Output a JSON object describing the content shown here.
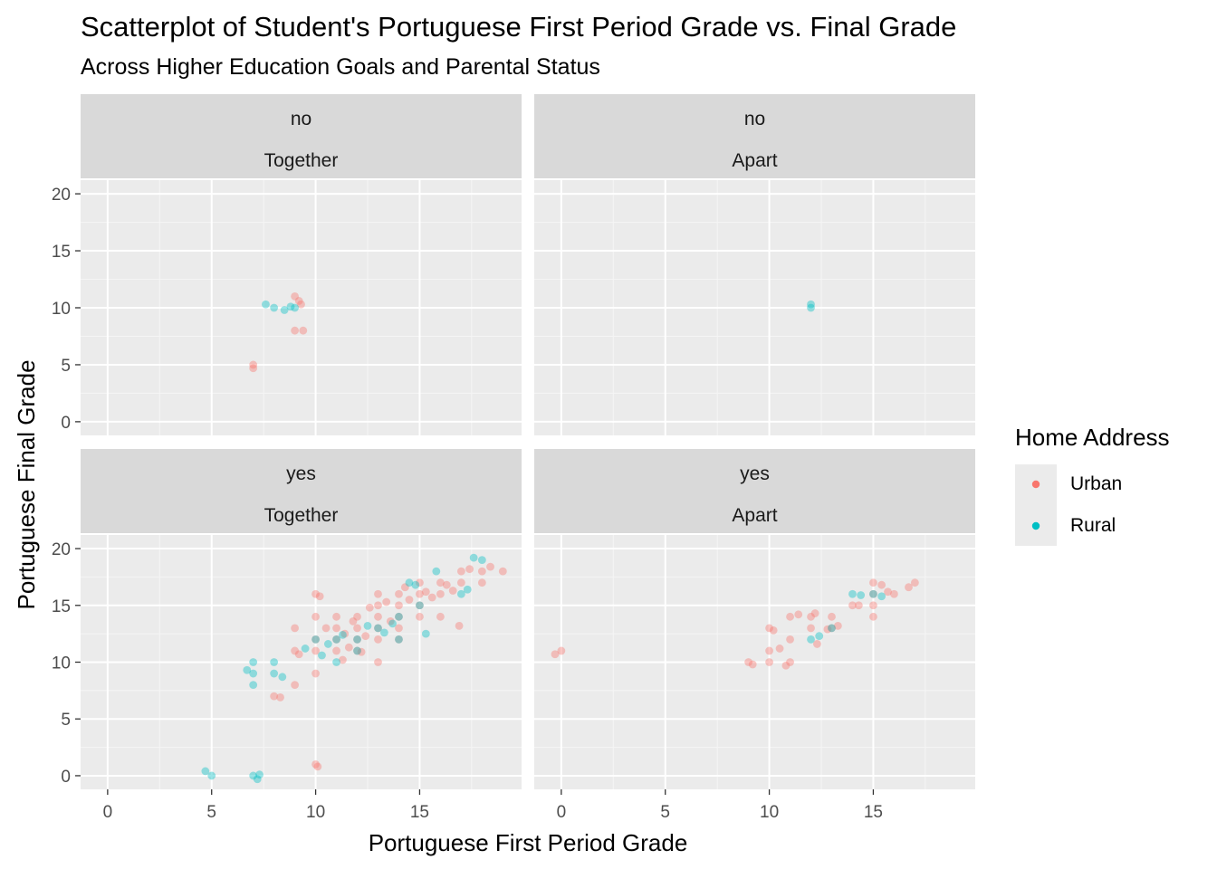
{
  "chart_data": {
    "type": "scatter",
    "title": "Scatterplot of Student's Portuguese First Period Grade vs. Final Grade",
    "subtitle": "Across Higher Education Goals and Parental Status",
    "xlabel": "Portuguese First Period Grade",
    "ylabel": "Portuguese Final Grade",
    "xlim": [
      -1.3,
      19.9
    ],
    "ylim": [
      -1.2,
      21.2
    ],
    "x_ticks": [
      "0",
      "5",
      "10",
      "15"
    ],
    "y_ticks": [
      "0",
      "5",
      "10",
      "15",
      "20"
    ],
    "grid": true,
    "legend": {
      "title": "Home Address",
      "placement": "right",
      "entries": [
        {
          "label": "Urban",
          "color": "#F8766D"
        },
        {
          "label": "Rural",
          "color": "#00BFC4"
        }
      ]
    },
    "panels": [
      {
        "strip_top": "no",
        "strip_bottom": "Together",
        "series": [
          {
            "name": "Urban",
            "points": [
              [
                7,
                5
              ],
              [
                7,
                4.7
              ],
              [
                9,
                11
              ],
              [
                9.2,
                10.6
              ],
              [
                9.3,
                10.3
              ],
              [
                9,
                8
              ],
              [
                9.4,
                8
              ]
            ]
          },
          {
            "name": "Rural",
            "points": [
              [
                7.6,
                10.3
              ],
              [
                8,
                10
              ],
              [
                8.5,
                9.8
              ],
              [
                9,
                10
              ],
              [
                8.8,
                10.1
              ]
            ]
          }
        ]
      },
      {
        "strip_top": "no",
        "strip_bottom": "Apart",
        "series": [
          {
            "name": "Urban",
            "points": []
          },
          {
            "name": "Rural",
            "points": [
              [
                12,
                10
              ],
              [
                12,
                10.3
              ]
            ]
          }
        ]
      },
      {
        "strip_top": "yes",
        "strip_bottom": "Together",
        "series": [
          {
            "name": "Urban",
            "points": [
              [
                8,
                7
              ],
              [
                8.3,
                6.9
              ],
              [
                9,
                8
              ],
              [
                9,
                11
              ],
              [
                9,
                13
              ],
              [
                9.2,
                10.7
              ],
              [
                10,
                9
              ],
              [
                10,
                11
              ],
              [
                10,
                12
              ],
              [
                10,
                14
              ],
              [
                10,
                16
              ],
              [
                10.2,
                15.8
              ],
              [
                10,
                1
              ],
              [
                10.1,
                0.8
              ],
              [
                10.5,
                13
              ],
              [
                11,
                11
              ],
              [
                11,
                12
              ],
              [
                11,
                13
              ],
              [
                11,
                14
              ],
              [
                11.4,
                12.5
              ],
              [
                11.6,
                11.3
              ],
              [
                11.8,
                13.6
              ],
              [
                12,
                11
              ],
              [
                12,
                12
              ],
              [
                12,
                13
              ],
              [
                12,
                14
              ],
              [
                12.4,
                12.3
              ],
              [
                12.6,
                14.8
              ],
              [
                13,
                10
              ],
              [
                13,
                12
              ],
              [
                13,
                13
              ],
              [
                13,
                14
              ],
              [
                13,
                15
              ],
              [
                13,
                16
              ],
              [
                13.4,
                15.3
              ],
              [
                13.6,
                13.6
              ],
              [
                14,
                12
              ],
              [
                14,
                13
              ],
              [
                14,
                14
              ],
              [
                14,
                15
              ],
              [
                14,
                16
              ],
              [
                14.3,
                16.6
              ],
              [
                14.5,
                15.5
              ],
              [
                15,
                14
              ],
              [
                15,
                15
              ],
              [
                15,
                16
              ],
              [
                15,
                17
              ],
              [
                15.3,
                16.2
              ],
              [
                15.6,
                15.7
              ],
              [
                16,
                14
              ],
              [
                16,
                16
              ],
              [
                16,
                17
              ],
              [
                16.3,
                16.8
              ],
              [
                16.6,
                16.3
              ],
              [
                17,
                17
              ],
              [
                17,
                18
              ],
              [
                17.4,
                18.2
              ],
              [
                18,
                17
              ],
              [
                18,
                18
              ],
              [
                18.4,
                18.4
              ],
              [
                19,
                18
              ],
              [
                16.9,
                13.2
              ],
              [
                12.2,
                10.9
              ],
              [
                11.3,
                10.2
              ]
            ]
          },
          {
            "name": "Rural",
            "points": [
              [
                4.7,
                0.4
              ],
              [
                5,
                0
              ],
              [
                6.7,
                9.3
              ],
              [
                7,
                8
              ],
              [
                7,
                9
              ],
              [
                7,
                10
              ],
              [
                7,
                0
              ],
              [
                7.2,
                -0.3
              ],
              [
                7.3,
                0.1
              ],
              [
                8,
                9
              ],
              [
                8,
                10
              ],
              [
                8.4,
                8.7
              ],
              [
                9.5,
                11.2
              ],
              [
                10,
                12
              ],
              [
                10.3,
                10.6
              ],
              [
                10.6,
                11.6
              ],
              [
                11,
                10
              ],
              [
                11,
                12
              ],
              [
                11.3,
                12.4
              ],
              [
                12,
                11
              ],
              [
                12,
                12
              ],
              [
                12.5,
                13.2
              ],
              [
                13,
                13
              ],
              [
                13.3,
                12.6
              ],
              [
                13.7,
                13.4
              ],
              [
                14,
                12
              ],
              [
                14,
                14
              ],
              [
                14.5,
                17
              ],
              [
                14.8,
                16.8
              ],
              [
                15,
                15
              ],
              [
                15.3,
                12.5
              ],
              [
                15.8,
                18
              ],
              [
                17,
                16
              ],
              [
                17.3,
                16.4
              ],
              [
                17.6,
                19.2
              ],
              [
                18,
                19
              ]
            ]
          }
        ]
      },
      {
        "strip_top": "yes",
        "strip_bottom": "Apart",
        "series": [
          {
            "name": "Urban",
            "points": [
              [
                0,
                11
              ],
              [
                -0.3,
                10.7
              ],
              [
                9,
                10
              ],
              [
                9.2,
                9.8
              ],
              [
                10,
                10
              ],
              [
                10,
                11
              ],
              [
                10,
                13
              ],
              [
                10.2,
                12.8
              ],
              [
                10.5,
                11.2
              ],
              [
                10.8,
                9.7
              ],
              [
                11,
                10
              ],
              [
                11,
                12
              ],
              [
                11,
                14
              ],
              [
                11.4,
                14.2
              ],
              [
                12,
                13
              ],
              [
                12,
                14
              ],
              [
                12.2,
                14.3
              ],
              [
                12.3,
                11.6
              ],
              [
                13,
                13
              ],
              [
                13.3,
                13.2
              ],
              [
                13,
                14
              ],
              [
                14,
                15
              ],
              [
                14.3,
                15
              ],
              [
                15,
                14
              ],
              [
                15,
                15
              ],
              [
                15,
                16
              ],
              [
                15,
                17
              ],
              [
                15.4,
                16.8
              ],
              [
                15.7,
                16.2
              ],
              [
                16,
                16
              ],
              [
                16.7,
                16.6
              ],
              [
                17,
                17
              ],
              [
                12.8,
                12.9
              ]
            ]
          },
          {
            "name": "Rural",
            "points": [
              [
                12,
                12
              ],
              [
                12.4,
                12.3
              ],
              [
                13,
                13
              ],
              [
                14,
                16
              ],
              [
                15,
                16
              ],
              [
                14.4,
                15.9
              ],
              [
                15.4,
                15.8
              ]
            ]
          }
        ]
      }
    ]
  }
}
